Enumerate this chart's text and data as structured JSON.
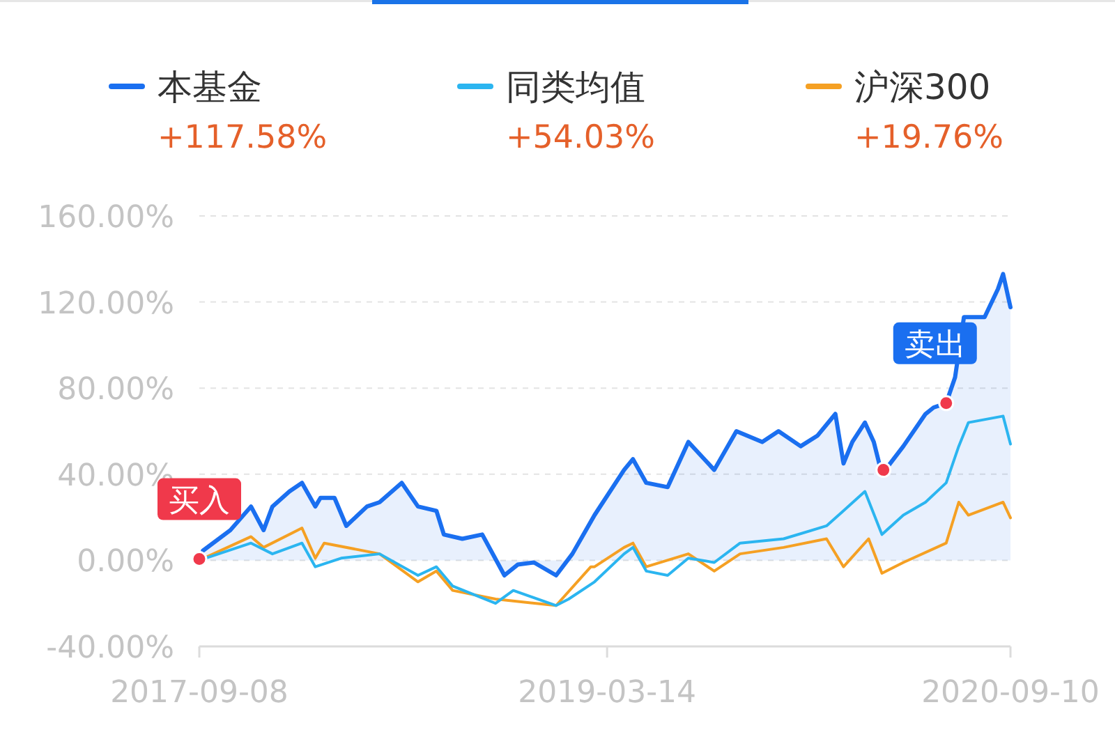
{
  "chart_data": {
    "type": "line",
    "x": [
      "2017-09-13",
      "2017-10-20",
      "2017-11-17",
      "2017-12-04",
      "2017-12-16",
      "2018-01-08",
      "2018-01-25",
      "2018-02-12",
      "2018-02-19",
      "2018-03-10",
      "2018-03-26",
      "2018-04-23",
      "2018-05-10",
      "2018-06-09",
      "2018-07-01",
      "2018-07-26",
      "2018-08-05",
      "2018-08-30",
      "2018-09-26",
      "2018-10-26",
      "2018-11-13",
      "2018-12-05",
      "2019-01-04",
      "2019-01-26",
      "2019-02-25",
      "2019-04-06",
      "2019-04-18",
      "2019-05-06",
      "2019-06-04",
      "2019-07-02",
      "2019-08-06",
      "2019-09-05",
      "2019-10-10",
      "2019-11-01",
      "2019-12-01",
      "2019-12-24",
      "2020-01-17",
      "2020-01-28",
      "2020-02-09",
      "2020-02-26",
      "2020-03-09",
      "2020-03-20",
      "2020-04-18",
      "2020-05-18",
      "2020-05-29",
      "2020-06-15",
      "2020-06-27",
      "2020-07-09",
      "2020-08-06",
      "2020-08-24",
      "2020-08-31",
      "2020-09-10"
    ],
    "series": [
      {
        "name": "本基金",
        "type": "area",
        "color": "#1a6ff0",
        "values": [
          4.5,
          14,
          25,
          14,
          25,
          32,
          36,
          25,
          29,
          29,
          16,
          25,
          27,
          36,
          25,
          23,
          12,
          10,
          12,
          -7,
          -2,
          -1,
          -7,
          3,
          21,
          42,
          47,
          36,
          34,
          55,
          42,
          60,
          55,
          60,
          53,
          58,
          68,
          45,
          55,
          64,
          55,
          40,
          53,
          68,
          71,
          73,
          85,
          113,
          113,
          126,
          133,
          117.58
        ]
      },
      {
        "name": "同类均值",
        "color": "#2bb5f0",
        "x": [
          "2017-09-08",
          "2017-11-17",
          "2017-12-16",
          "2018-01-25",
          "2018-02-12",
          "2018-03-19",
          "2018-05-10",
          "2018-07-01",
          "2018-07-26",
          "2018-08-17",
          "2018-10-14",
          "2018-11-07",
          "2019-01-04",
          "2019-01-21",
          "2019-02-25",
          "2019-04-06",
          "2019-04-18",
          "2019-05-06",
          "2019-06-04",
          "2019-07-02",
          "2019-08-06",
          "2019-09-10",
          "2019-11-08",
          "2020-01-05",
          "2020-01-28",
          "2020-02-26",
          "2020-03-20",
          "2020-04-18",
          "2020-05-18",
          "2020-06-15",
          "2020-07-02",
          "2020-07-15",
          "2020-08-31",
          "2020-09-10"
        ],
        "values": [
          0,
          8,
          3,
          8,
          -3,
          1,
          3,
          -7,
          -3,
          -12,
          -20,
          -14,
          -21,
          -18,
          -10,
          3,
          6,
          -5,
          -7,
          1,
          -1,
          8,
          10,
          16,
          23,
          32,
          12,
          21,
          27,
          36,
          53,
          64,
          67,
          54.03
        ]
      },
      {
        "name": "沪深300",
        "color": "#f5a023",
        "x": [
          "2017-09-08",
          "2017-11-17",
          "2017-12-04",
          "2018-01-25",
          "2018-02-12",
          "2018-02-24",
          "2018-05-10",
          "2018-07-01",
          "2018-07-26",
          "2018-08-17",
          "2018-10-14",
          "2019-01-04",
          "2019-02-20",
          "2019-02-25",
          "2019-04-06",
          "2019-04-18",
          "2019-05-06",
          "2019-07-02",
          "2019-08-06",
          "2019-09-10",
          "2019-11-08",
          "2020-01-05",
          "2020-01-28",
          "2020-03-02",
          "2020-03-20",
          "2020-04-18",
          "2020-06-15",
          "2020-07-02",
          "2020-07-15",
          "2020-08-31",
          "2020-09-10"
        ],
        "values": [
          0,
          11,
          6,
          15,
          1,
          8,
          3,
          -10,
          -5,
          -14,
          -18,
          -21,
          -3,
          -3,
          6,
          8,
          -3,
          3,
          -5,
          3,
          6,
          10,
          -3,
          10,
          -6,
          -1,
          8,
          27,
          21,
          27,
          19.76
        ]
      },
      {
        "type": "scatter",
        "color": "#f0394b",
        "x": [
          "2017-09-08",
          "2020-03-22",
          "2020-06-15"
        ],
        "values": [
          0.6,
          42,
          73
        ]
      }
    ],
    "annotations": [
      "+117.58%",
      "+54.03%",
      "+19.76%",
      {
        "text": "买入",
        "x": "2017-09-08",
        "y": 0.6
      },
      {
        "text": "卖出",
        "x": "2020-06-15",
        "y": 73
      }
    ],
    "xlim": [
      "2017-09-08",
      "2020-09-10"
    ],
    "xticks": [
      {
        "value": "2017-09-08",
        "label": "2017-09-08"
      },
      {
        "value": "2019-03-14",
        "label": "2019-03-14"
      },
      {
        "value": "2020-09-10",
        "label": "2020-09-10"
      }
    ],
    "ylim": [
      -40,
      160
    ],
    "yticks": [
      {
        "value": -40,
        "label": "-40.00%"
      },
      {
        "value": 0,
        "label": "0.00%"
      },
      {
        "value": 40,
        "label": "40.00%"
      },
      {
        "value": 80,
        "label": "80.00%"
      },
      {
        "value": 120,
        "label": "120.00%"
      },
      {
        "value": 160,
        "label": "160.00%"
      }
    ],
    "grid": "y",
    "legend": "top",
    "line_style": "solid"
  }
}
